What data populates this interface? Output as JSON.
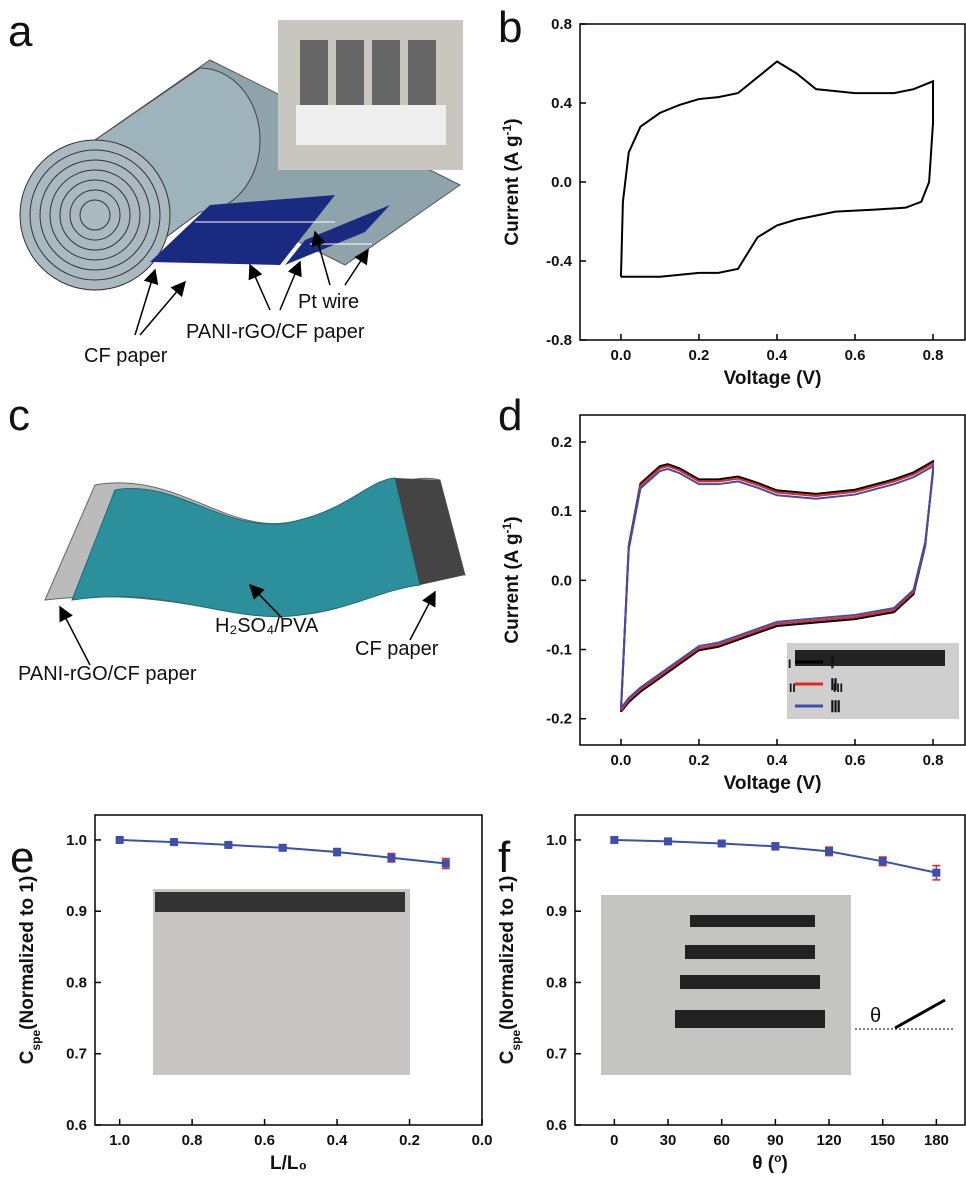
{
  "diagram_a": {
    "panel": "a",
    "labels": [
      "Pt wire",
      "PANI-rGO/CF paper",
      "CF paper"
    ]
  },
  "diagram_c": {
    "panel": "c",
    "labels": [
      "H₂SO₄/PVA",
      "PANI-rGO/CF paper",
      "CF paper"
    ]
  },
  "chart_data": [
    {
      "type": "line",
      "panel": "b",
      "xlabel": [
        {
          "text": "Voltage (V)"
        }
      ],
      "ylabel": [
        {
          "text": "Current (A g"
        },
        {
          "sup": "-1"
        },
        {
          "text": ")"
        }
      ],
      "xlim": [
        -0.105,
        0.882
      ],
      "ylim": [
        -0.8,
        0.8
      ],
      "xticks": [
        {
          "value": 0,
          "label": "0.0"
        },
        0.2,
        0.4,
        0.6,
        0.8
      ],
      "yticks": [
        -0.8,
        -0.4,
        {
          "value": 0,
          "label": "0.0"
        },
        0.4,
        0.8
      ],
      "x": [
        0,
        0.005,
        0.02,
        0.05,
        0.1,
        0.15,
        0.2,
        0.25,
        0.3,
        0.35,
        0.4,
        0.45,
        0.5,
        0.6,
        0.7,
        0.75,
        0.8,
        0.8,
        0.79,
        0.77,
        0.73,
        0.65,
        0.55,
        0.45,
        0.4,
        0.35,
        0.3,
        0.25,
        0.2,
        0.1,
        0
      ],
      "series": [
        {
          "color": "#000000",
          "values": [
            -0.48,
            -0.1,
            0.15,
            0.28,
            0.35,
            0.39,
            0.42,
            0.43,
            0.45,
            0.53,
            0.61,
            0.55,
            0.47,
            0.45,
            0.45,
            0.47,
            0.51,
            0.3,
            0,
            -0.1,
            -0.13,
            -0.14,
            -0.15,
            -0.19,
            -0.22,
            -0.28,
            -0.44,
            -0.46,
            -0.46,
            -0.48,
            -0.48
          ]
        }
      ]
    },
    {
      "type": "line",
      "panel": "d",
      "xlabel": [
        {
          "text": "Voltage (V)"
        }
      ],
      "ylabel": [
        {
          "text": "Current (A g"
        },
        {
          "sup": "-1"
        },
        {
          "text": ")"
        }
      ],
      "xlim": [
        -0.105,
        0.882
      ],
      "ylim": [
        -0.238,
        0.239
      ],
      "xticks": [
        {
          "value": 0,
          "label": "0.0"
        },
        0.2,
        0.4,
        0.6,
        0.8
      ],
      "yticks": [
        -0.2,
        -0.1,
        {
          "value": 0,
          "label": "0.0"
        },
        0.1,
        0.2
      ],
      "inset_labels": [
        "I",
        "II",
        "III"
      ],
      "x": [
        0,
        0.02,
        0.05,
        0.1,
        0.12,
        0.15,
        0.2,
        0.25,
        0.3,
        0.35,
        0.4,
        0.5,
        0.6,
        0.7,
        0.75,
        0.8,
        0.8,
        0.78,
        0.75,
        0.7,
        0.6,
        0.5,
        0.4,
        0.3,
        0.25,
        0.2,
        0.15,
        0.1,
        0.05,
        0.02,
        0
      ],
      "series": [
        {
          "name": "Ⅰ",
          "color": "#000000",
          "values": [
            -0.19,
            0.05,
            0.14,
            0.165,
            0.168,
            0.162,
            0.146,
            0.146,
            0.15,
            0.141,
            0.13,
            0.125,
            0.131,
            0.146,
            0.156,
            0.172,
            0.16,
            0.05,
            -0.02,
            -0.046,
            -0.056,
            -0.061,
            -0.066,
            -0.086,
            -0.096,
            -0.101,
            -0.121,
            -0.141,
            -0.161,
            -0.176,
            -0.19
          ]
        },
        {
          "name": "Ⅱ",
          "color": "#e8251f",
          "values": [
            -0.188,
            0.048,
            0.137,
            0.162,
            0.165,
            0.159,
            0.143,
            0.143,
            0.147,
            0.138,
            0.127,
            0.122,
            0.128,
            0.143,
            0.153,
            0.169,
            0.158,
            0.052,
            -0.017,
            -0.043,
            -0.053,
            -0.058,
            -0.063,
            -0.083,
            -0.093,
            -0.098,
            -0.118,
            -0.138,
            -0.158,
            -0.173,
            -0.188
          ]
        },
        {
          "name": "Ⅲ",
          "color": "#3b4fb0",
          "values": [
            -0.185,
            0.045,
            0.133,
            0.158,
            0.161,
            0.155,
            0.139,
            0.139,
            0.143,
            0.134,
            0.123,
            0.118,
            0.124,
            0.139,
            0.149,
            0.165,
            0.155,
            0.055,
            -0.014,
            -0.04,
            -0.05,
            -0.055,
            -0.06,
            -0.08,
            -0.09,
            -0.095,
            -0.115,
            -0.135,
            -0.155,
            -0.17,
            -0.185
          ]
        }
      ]
    },
    {
      "type": "line",
      "panel": "e",
      "xlabel": [
        {
          "text": "L/L₀"
        }
      ],
      "ylabel": [
        {
          "text": "C"
        },
        {
          "sub": "spe"
        },
        {
          "text": "(Normalized to 1)"
        }
      ],
      "xlim": [
        1.068,
        0.0
      ],
      "ylim": [
        0.6,
        1.035
      ],
      "xticks": [
        {
          "value": 1,
          "label": "1.0"
        },
        0.8,
        0.6,
        0.4,
        0.2,
        {
          "value": 0,
          "label": "0.0"
        }
      ],
      "yticks": [
        0.6,
        0.7,
        0.8,
        0.9,
        {
          "value": 1,
          "label": "1.0"
        }
      ],
      "x": [
        1.0,
        0.85,
        0.7,
        0.55,
        0.4,
        0.25,
        0.1
      ],
      "series": [
        {
          "color": "#3b4fb0",
          "marker": "square",
          "error_color": "#e8251f",
          "values": [
            1.0,
            0.997,
            0.993,
            0.989,
            0.983,
            0.975,
            0.967
          ],
          "errors": [
            0.002,
            0.004,
            0.003,
            0.004,
            0.005,
            0.006,
            0.007
          ]
        }
      ]
    },
    {
      "type": "line",
      "panel": "f",
      "xlabel": [
        {
          "text": "θ ("
        },
        {
          "sup": "o"
        },
        {
          "text": ")"
        }
      ],
      "ylabel": [
        {
          "text": "C"
        },
        {
          "sub": "spe"
        },
        {
          "text": "(Normalized to 1)"
        }
      ],
      "xlim": [
        -22,
        196
      ],
      "ylim": [
        0.6,
        1.035
      ],
      "xticks": [
        0,
        30,
        60,
        90,
        120,
        150,
        180
      ],
      "yticks": [
        0.6,
        0.7,
        0.8,
        0.9,
        {
          "value": 1,
          "label": "1.0"
        }
      ],
      "annotation": "θ",
      "x": [
        0,
        30,
        60,
        90,
        120,
        150,
        180
      ],
      "series": [
        {
          "color": "#3b4fb0",
          "marker": "square",
          "error_color": "#e8251f",
          "values": [
            1.0,
            0.998,
            0.995,
            0.991,
            0.984,
            0.97,
            0.954
          ],
          "errors": [
            0.003,
            0.004,
            0.004,
            0.005,
            0.006,
            0.006,
            0.01
          ]
        }
      ]
    }
  ]
}
